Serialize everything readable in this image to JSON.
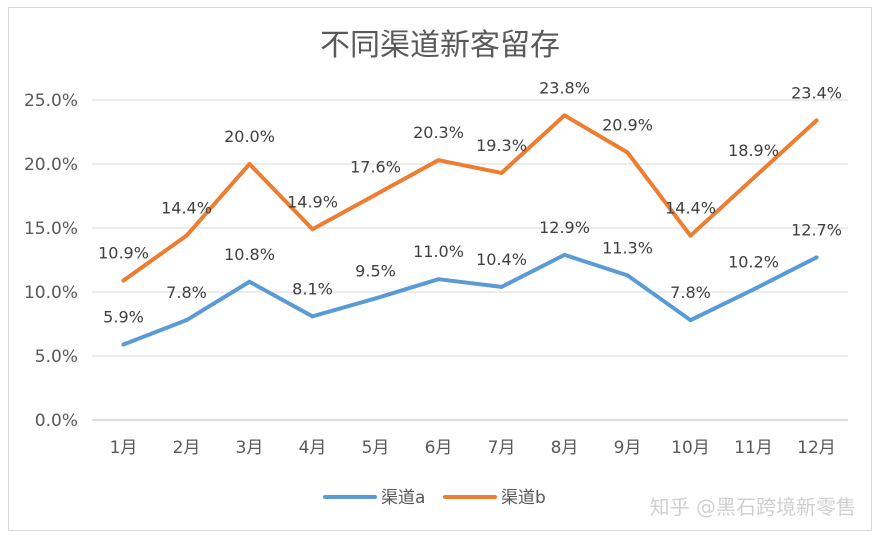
{
  "chart_data": {
    "type": "line",
    "title": "不同渠道新客留存",
    "xlabel": "",
    "ylabel": "",
    "categories": [
      "1月",
      "2月",
      "3月",
      "4月",
      "5月",
      "6月",
      "7月",
      "8月",
      "9月",
      "10月",
      "11月",
      "12月"
    ],
    "y_ticks": [
      "0.0%",
      "5.0%",
      "10.0%",
      "15.0%",
      "20.0%",
      "25.0%"
    ],
    "ylim": [
      0,
      25
    ],
    "grid": true,
    "legend_position": "bottom",
    "series": [
      {
        "name": "渠道a",
        "color": "#5b9bd5",
        "values": [
          5.9,
          7.8,
          10.8,
          8.1,
          9.5,
          11.0,
          10.4,
          12.9,
          11.3,
          7.8,
          10.2,
          12.7
        ],
        "labels": [
          "5.9%",
          "7.8%",
          "10.8%",
          "8.1%",
          "9.5%",
          "11.0%",
          "10.4%",
          "12.9%",
          "11.3%",
          "7.8%",
          "10.2%",
          "12.7%"
        ]
      },
      {
        "name": "渠道b",
        "color": "#ed7d31",
        "values": [
          10.9,
          14.4,
          20.0,
          14.9,
          17.6,
          20.3,
          19.3,
          23.8,
          20.9,
          14.4,
          18.9,
          23.4
        ],
        "labels": [
          "10.9%",
          "14.4%",
          "20.0%",
          "14.9%",
          "17.6%",
          "20.3%",
          "19.3%",
          "23.8%",
          "20.9%",
          "14.4%",
          "18.9%",
          "23.4%"
        ]
      }
    ]
  },
  "watermark": "知乎 @黑石跨境新零售"
}
